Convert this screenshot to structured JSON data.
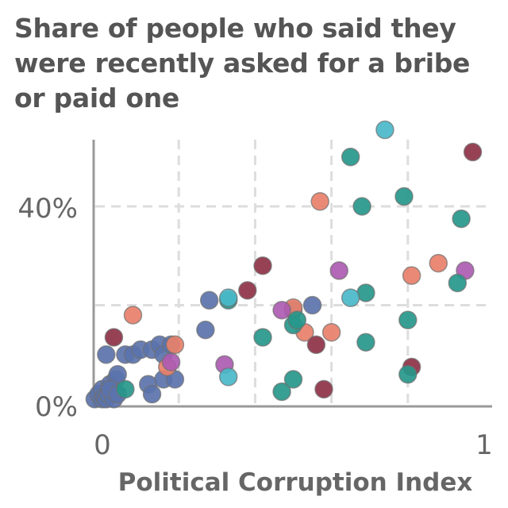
{
  "chart_data": {
    "type": "scatter",
    "title_lines": [
      "Share of people who said they",
      "were recently asked for a bribe",
      "or paid one"
    ],
    "xlabel": "Political Corruption Index",
    "ylabel": "",
    "xlim": [
      0,
      1
    ],
    "ylim": [
      0,
      55
    ],
    "x_tick_labels": [
      "0",
      "1"
    ],
    "y_tick_labels": [
      "0%",
      "40%"
    ],
    "grid": true,
    "colors": {
      "blue": "#5b73ad",
      "orange": "#e8806a",
      "maroon": "#8e3146",
      "purple": "#ad5bb2",
      "teal": "#26978a",
      "cyan": "#4ab8c9",
      "axis": "#999999",
      "grid": "#dddddd"
    },
    "series": [
      {
        "color": "blue",
        "points": [
          [
            -0.02,
            1
          ],
          [
            -0.01,
            2
          ],
          [
            0,
            3
          ],
          [
            0,
            1
          ],
          [
            0.005,
            1.5
          ],
          [
            0.01,
            1
          ],
          [
            0.015,
            2
          ],
          [
            0.02,
            4
          ],
          [
            0.03,
            1
          ],
          [
            0.035,
            5
          ],
          [
            0.04,
            6
          ],
          [
            0.01,
            10
          ],
          [
            0.06,
            10
          ],
          [
            0.08,
            10
          ],
          [
            0.1,
            11
          ],
          [
            0.13,
            11
          ],
          [
            0.15,
            12
          ],
          [
            0.16,
            10
          ],
          [
            0.18,
            12
          ],
          [
            0.12,
            4
          ],
          [
            0.13,
            2
          ],
          [
            0.16,
            5
          ],
          [
            0.19,
            5
          ],
          [
            0.27,
            15
          ],
          [
            0.28,
            21
          ],
          [
            0.5,
            19
          ],
          [
            0.55,
            20
          ],
          [
            0.02,
            3
          ],
          [
            0.04,
            2
          ]
        ]
      },
      {
        "color": "orange",
        "points": [
          [
            0.08,
            18
          ],
          [
            0.17,
            7.5
          ],
          [
            0.19,
            12
          ],
          [
            0.5,
            19.5
          ],
          [
            0.53,
            14.5
          ],
          [
            0.57,
            41
          ],
          [
            0.6,
            14.5
          ],
          [
            0.81,
            26
          ],
          [
            0.88,
            28.5
          ]
        ]
      },
      {
        "color": "maroon",
        "points": [
          [
            0.03,
            13.5
          ],
          [
            0.38,
            23
          ],
          [
            0.42,
            28
          ],
          [
            0.56,
            12
          ],
          [
            0.58,
            3
          ],
          [
            0.81,
            7.5
          ],
          [
            0.97,
            51
          ]
        ]
      },
      {
        "color": "purple",
        "points": [
          [
            0.18,
            8.5
          ],
          [
            0.32,
            8
          ],
          [
            0.47,
            19
          ],
          [
            0.62,
            27
          ],
          [
            0.95,
            27
          ]
        ]
      },
      {
        "color": "teal",
        "points": [
          [
            0.06,
            3
          ],
          [
            0.33,
            21
          ],
          [
            0.42,
            13.5
          ],
          [
            0.47,
            2.5
          ],
          [
            0.5,
            16
          ],
          [
            0.5,
            5
          ],
          [
            0.51,
            17
          ],
          [
            0.65,
            50
          ],
          [
            0.68,
            40
          ],
          [
            0.69,
            12.5
          ],
          [
            0.69,
            22.5
          ],
          [
            0.79,
            42
          ],
          [
            0.8,
            6
          ],
          [
            0.8,
            17
          ],
          [
            0.93,
            24.5
          ],
          [
            0.94,
            37.5
          ]
        ]
      },
      {
        "color": "cyan",
        "points": [
          [
            0.33,
            21.5
          ],
          [
            0.33,
            5.5
          ],
          [
            0.65,
            21.5
          ],
          [
            0.74,
            55.5
          ]
        ]
      }
    ]
  }
}
